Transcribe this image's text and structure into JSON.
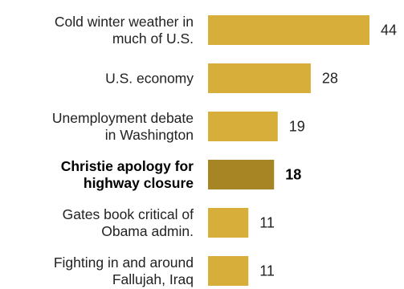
{
  "chart_data": {
    "type": "bar",
    "orientation": "horizontal",
    "categories": [
      [
        "Cold winter weather in",
        "much of U.S."
      ],
      [
        "U.S. economy"
      ],
      [
        "Unemployment debate",
        "in Washington"
      ],
      [
        "Christie apology for",
        "highway closure"
      ],
      [
        "Gates book critical of",
        "Obama admin."
      ],
      [
        "Fighting in and around",
        "Fallujah, Iraq"
      ]
    ],
    "values": [
      44,
      28,
      19,
      18,
      11,
      11
    ],
    "highlight_index": 3,
    "xlim": [
      0,
      44
    ],
    "grid": false,
    "colors": {
      "bar": "#d8ae3a",
      "highlight_bar": "#a88524"
    }
  }
}
